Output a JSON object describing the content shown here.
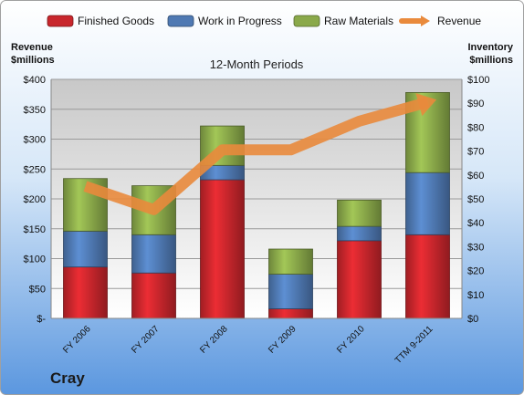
{
  "company": "Cray",
  "chart_data": {
    "type": "bar",
    "stacked": true,
    "title": "12-Month Periods",
    "categories": [
      "FY 2006",
      "FY 2007",
      "FY 2008",
      "FY 2009",
      "FY 2010",
      "TTM 9-2011"
    ],
    "series": [
      {
        "name": "Finished Goods",
        "axis": "right",
        "color": "#c8262c",
        "values": [
          21.5,
          19,
          58,
          4,
          32.5,
          35
        ]
      },
      {
        "name": "Work in Progress",
        "axis": "right",
        "color": "#4f79b3",
        "values": [
          15,
          16,
          6,
          14.5,
          6,
          26
        ]
      },
      {
        "name": "Raw Materials",
        "axis": "right",
        "color": "#8aa94a",
        "values": [
          22,
          20.5,
          16.5,
          10.5,
          11,
          33.5
        ]
      },
      {
        "name": "Revenue",
        "type": "line",
        "axis": "left",
        "color": "#e98a3c",
        "values": [
          221,
          182,
          282,
          282,
          330,
          362
        ]
      }
    ],
    "y_left": {
      "label": [
        "Revenue",
        "$millions"
      ],
      "lim": [
        0,
        400
      ],
      "ticks": [
        "$-",
        "$50",
        "$100",
        "$150",
        "$200",
        "$250",
        "$300",
        "$350",
        "$400"
      ]
    },
    "y_right": {
      "label": [
        "Inventory",
        "$millions"
      ],
      "lim": [
        0,
        100
      ],
      "ticks": [
        "$0",
        "$10",
        "$20",
        "$30",
        "$40",
        "$50",
        "$60",
        "$70",
        "$80",
        "$90",
        "$100"
      ]
    },
    "legend_position": "top",
    "grid": true
  }
}
